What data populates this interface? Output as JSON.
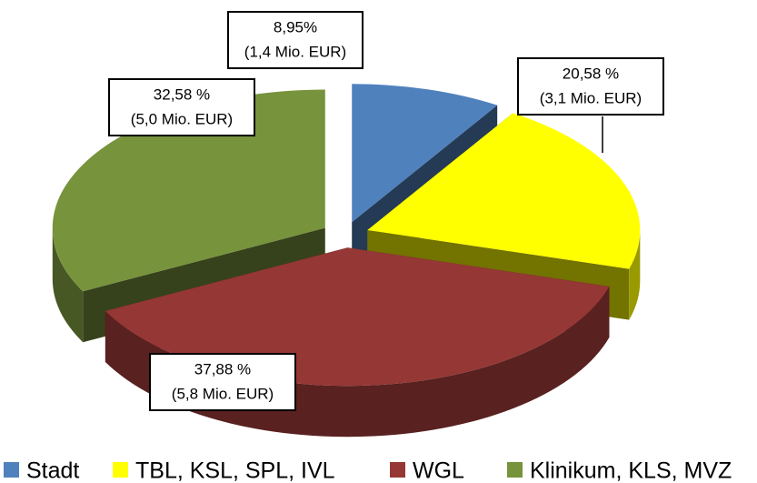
{
  "chart_data": {
    "type": "pie",
    "categories": [
      "Stadt",
      "TBL, KSL, SPL, IVL",
      "WGL",
      "Klinikum, KLS, MVZ"
    ],
    "values": [
      8.95,
      20.58,
      37.88,
      32.58
    ],
    "value_labels": [
      "8,95%",
      "20,58 %",
      "37,88 %",
      "32,58 %"
    ],
    "amount_labels": [
      "(1,4 Mio. EUR)",
      "(3,1 Mio. EUR)",
      "(5,8 Mio. EUR)",
      "(5,0 Mio. EUR)"
    ],
    "colors": [
      "#4f81bd",
      "#ffff00",
      "#953735",
      "#77933c"
    ],
    "legend": "bottom"
  }
}
